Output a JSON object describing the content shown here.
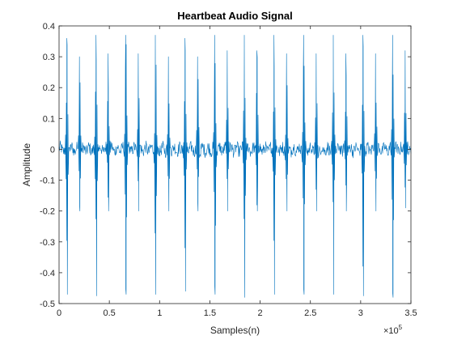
{
  "chart_data": {
    "type": "line",
    "title": "Heartbeat Audio Signal",
    "xlabel": "Samples(n)",
    "ylabel": "Amplitude",
    "xlim": [
      0,
      350000
    ],
    "ylim": [
      -0.5,
      0.4
    ],
    "x_ticks": [
      0,
      50000,
      100000,
      150000,
      200000,
      250000,
      300000,
      350000
    ],
    "x_tick_labels": [
      "0",
      "0.5",
      "1",
      "1.5",
      "2",
      "2.5",
      "3",
      "3.5"
    ],
    "x_exponent_label": "×10",
    "x_exponent_power": "5",
    "y_ticks": [
      -0.5,
      -0.4,
      -0.3,
      -0.2,
      -0.1,
      0,
      0.1,
      0.2,
      0.3,
      0.4
    ],
    "y_tick_labels": [
      "-0.5",
      "-0.4",
      "-0.3",
      "-0.2",
      "-0.1",
      "0",
      "0.1",
      "0.2",
      "0.3",
      "0.4"
    ],
    "grid": false,
    "line_color": "#0072BD",
    "baseline_noise_amplitude": 0.02,
    "beats": [
      {
        "s1_x": 8000,
        "s1_max": 0.36,
        "s1_min": -0.47,
        "s2_x": 20500,
        "s2_max": 0.3,
        "s2_min": -0.2
      },
      {
        "s1_x": 37000,
        "s1_max": 0.37,
        "s1_min": -0.475,
        "s2_x": 49000,
        "s2_max": 0.31,
        "s2_min": -0.2
      },
      {
        "s1_x": 66500,
        "s1_max": 0.37,
        "s1_min": -0.47,
        "s2_x": 79000,
        "s2_max": 0.31,
        "s2_min": -0.2
      },
      {
        "s1_x": 96000,
        "s1_max": 0.37,
        "s1_min": -0.47,
        "s2_x": 109000,
        "s2_max": 0.3,
        "s2_min": -0.2
      },
      {
        "s1_x": 125500,
        "s1_max": 0.36,
        "s1_min": -0.46,
        "s2_x": 138000,
        "s2_max": 0.3,
        "s2_min": -0.2
      },
      {
        "s1_x": 155000,
        "s1_max": 0.37,
        "s1_min": -0.47,
        "s2_x": 167500,
        "s2_max": 0.32,
        "s2_min": -0.2
      },
      {
        "s1_x": 184500,
        "s1_max": 0.37,
        "s1_min": -0.48,
        "s2_x": 197000,
        "s2_max": 0.32,
        "s2_min": -0.2
      },
      {
        "s1_x": 214000,
        "s1_max": 0.37,
        "s1_min": -0.47,
        "s2_x": 226500,
        "s2_max": 0.31,
        "s2_min": -0.2
      },
      {
        "s1_x": 243500,
        "s1_max": 0.37,
        "s1_min": -0.47,
        "s2_x": 256000,
        "s2_max": 0.31,
        "s2_min": -0.2
      },
      {
        "s1_x": 273000,
        "s1_max": 0.37,
        "s1_min": -0.47,
        "s2_x": 285500,
        "s2_max": 0.31,
        "s2_min": -0.2
      },
      {
        "s1_x": 302500,
        "s1_max": 0.37,
        "s1_min": -0.475,
        "s2_x": 315000,
        "s2_max": 0.31,
        "s2_min": -0.2
      },
      {
        "s1_x": 332000,
        "s1_max": 0.37,
        "s1_min": -0.48,
        "s2_x": 344500,
        "s2_max": 0.32,
        "s2_min": -0.19
      }
    ]
  }
}
